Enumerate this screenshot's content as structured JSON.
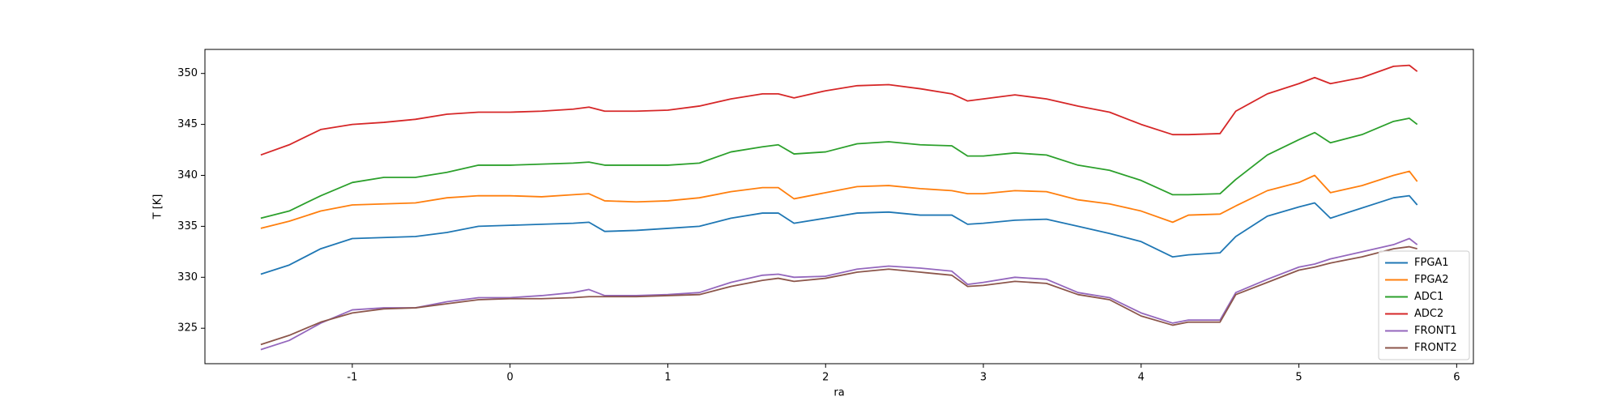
{
  "chart_data": {
    "type": "line",
    "x_label": "ra",
    "y_label": "T [K]",
    "x": [
      -1.58,
      -1.4,
      -1.2,
      -1,
      -0.8,
      -0.6,
      -0.4,
      -0.2,
      0,
      0.2,
      0.4,
      0.5,
      0.6,
      0.8,
      1,
      1.2,
      1.4,
      1.6,
      1.7,
      1.8,
      2,
      2.2,
      2.4,
      2.6,
      2.8,
      2.9,
      3,
      3.2,
      3.4,
      3.6,
      3.8,
      4,
      4.2,
      4.3,
      4.5,
      4.6,
      4.8,
      5,
      5.1,
      5.2,
      5.4,
      5.6,
      5.7,
      5.75
    ],
    "series": [
      {
        "name": "FPGA1",
        "color": "#1f77b4",
        "values": [
          330.3,
          331.2,
          332.8,
          333.8,
          333.9,
          334,
          334.4,
          335,
          335.1,
          335.2,
          335.3,
          335.4,
          334.5,
          334.6,
          334.8,
          335,
          335.8,
          336.3,
          336.3,
          335.3,
          335.8,
          336.3,
          336.4,
          336.1,
          336.1,
          335.2,
          335.3,
          335.6,
          335.7,
          335,
          334.3,
          333.5,
          332,
          332.2,
          332.4,
          334,
          336,
          336.9,
          337.3,
          335.8,
          336.8,
          337.8,
          338,
          337.1
        ]
      },
      {
        "name": "FPGA2",
        "color": "#ff7f0e",
        "values": [
          334.8,
          335.5,
          336.5,
          337.1,
          337.2,
          337.3,
          337.8,
          338,
          338,
          337.9,
          338.1,
          338.2,
          337.5,
          337.4,
          337.5,
          337.8,
          338.4,
          338.8,
          338.8,
          337.7,
          338.3,
          338.9,
          339,
          338.7,
          338.5,
          338.2,
          338.2,
          338.5,
          338.4,
          337.6,
          337.2,
          336.5,
          335.4,
          336.1,
          336.2,
          337,
          338.5,
          339.3,
          340,
          338.3,
          339,
          340,
          340.4,
          339.4
        ]
      },
      {
        "name": "ADC1",
        "color": "#2ca02c",
        "values": [
          335.8,
          336.5,
          338,
          339.3,
          339.8,
          339.8,
          340.3,
          341,
          341,
          341.1,
          341.2,
          341.3,
          341,
          341,
          341,
          341.2,
          342.3,
          342.8,
          343,
          342.1,
          342.3,
          343.1,
          343.3,
          343,
          342.9,
          341.9,
          341.9,
          342.2,
          342,
          341,
          340.5,
          339.5,
          338.1,
          338.1,
          338.2,
          339.6,
          342,
          343.5,
          344.2,
          343.2,
          344,
          345.3,
          345.6,
          345
        ]
      },
      {
        "name": "ADC2",
        "color": "#d62728",
        "values": [
          342,
          343,
          344.5,
          345,
          345.2,
          345.5,
          346,
          346.2,
          346.2,
          346.3,
          346.5,
          346.7,
          346.3,
          346.3,
          346.4,
          346.8,
          347.5,
          348,
          348,
          347.6,
          348.3,
          348.8,
          348.9,
          348.5,
          348,
          347.3,
          347.5,
          347.9,
          347.5,
          346.8,
          346.2,
          345,
          344,
          344,
          344.1,
          346.3,
          348,
          349,
          349.6,
          349,
          349.6,
          350.7,
          350.8,
          350.2
        ]
      },
      {
        "name": "FRONT1",
        "color": "#9467bd",
        "values": [
          322.9,
          323.8,
          325.5,
          326.8,
          327,
          327,
          327.6,
          328,
          328,
          328.2,
          328.5,
          328.8,
          328.2,
          328.2,
          328.3,
          328.5,
          329.5,
          330.2,
          330.3,
          330,
          330.1,
          330.8,
          331.1,
          330.9,
          330.6,
          329.3,
          329.5,
          330,
          329.8,
          328.5,
          328,
          326.5,
          325.5,
          325.8,
          325.8,
          328.5,
          329.8,
          331,
          331.3,
          331.8,
          332.5,
          333.2,
          333.8,
          333.2
        ]
      },
      {
        "name": "FRONT2",
        "color": "#8c564b",
        "values": [
          323.4,
          324.3,
          325.6,
          326.5,
          326.9,
          327,
          327.4,
          327.8,
          327.9,
          327.9,
          328,
          328.1,
          328.1,
          328.1,
          328.2,
          328.3,
          329.1,
          329.7,
          329.9,
          329.6,
          329.9,
          330.5,
          330.8,
          330.5,
          330.2,
          329.1,
          329.2,
          329.6,
          329.4,
          328.3,
          327.8,
          326.2,
          325.3,
          325.6,
          325.6,
          328.3,
          329.5,
          330.7,
          331,
          331.4,
          332,
          332.8,
          333,
          332.8
        ]
      }
    ],
    "xlim": [
      -1.934,
      6.106
    ],
    "ylim": [
      321.52,
      352.36
    ],
    "xticks": [
      -1,
      0,
      1,
      2,
      3,
      4,
      5,
      6
    ],
    "yticks": [
      325,
      330,
      335,
      340,
      345,
      350
    ],
    "grid": false,
    "legend": "lower right"
  }
}
